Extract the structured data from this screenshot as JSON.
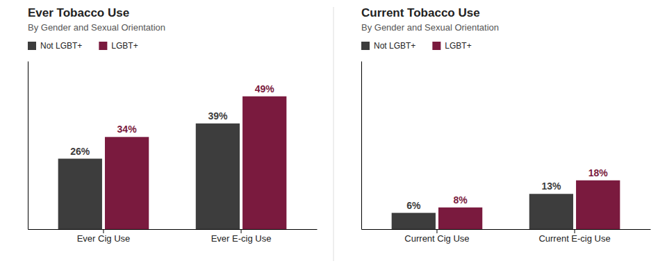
{
  "chart_data": [
    {
      "type": "bar",
      "title": "Ever Tobacco Use",
      "subtitle": "By Gender and Sexual Orientation",
      "categories": [
        "Ever Cig Use",
        "Ever E-cig Use"
      ],
      "series": [
        {
          "name": "Not LGBT+",
          "color": "#3d3d3d",
          "values": [
            26,
            39
          ],
          "value_labels": [
            "26%",
            "39%"
          ]
        },
        {
          "name": "LGBT+",
          "color": "#7a1a3e",
          "values": [
            34,
            49
          ],
          "value_labels": [
            "34%",
            "49%"
          ]
        }
      ],
      "ylim": [
        0,
        62
      ],
      "data_labels": true,
      "tick_labels": "x",
      "legend": "top-left",
      "grid": false
    },
    {
      "type": "bar",
      "title": "Current Tobacco Use",
      "subtitle": "By Gender and Sexual Orientation",
      "categories": [
        "Current Cig Use",
        "Current E-cig Use"
      ],
      "series": [
        {
          "name": "Not LGBT+",
          "color": "#3d3d3d",
          "values": [
            6,
            13
          ],
          "value_labels": [
            "6%",
            "13%"
          ]
        },
        {
          "name": "LGBT+",
          "color": "#7a1a3e",
          "values": [
            8,
            18
          ],
          "value_labels": [
            "8%",
            "18%"
          ]
        }
      ],
      "ylim": [
        0,
        62
      ],
      "data_labels": true,
      "tick_labels": "x",
      "legend": "top-left",
      "grid": false
    }
  ]
}
